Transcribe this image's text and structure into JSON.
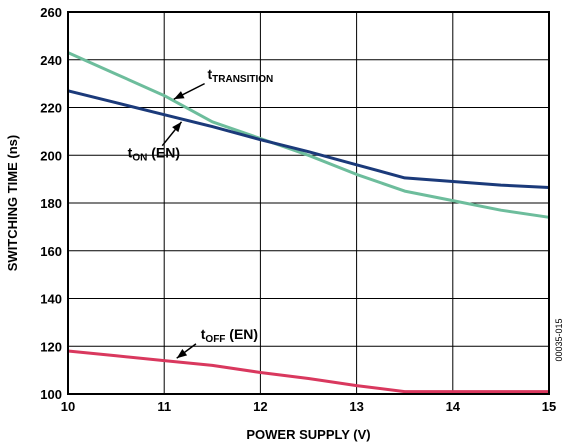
{
  "chart_data": {
    "type": "line",
    "xlabel": "POWER SUPPLY (V)",
    "ylabel": "SWITCHING TIME (ns)",
    "xlim": [
      10,
      15
    ],
    "ylim": [
      100,
      260
    ],
    "x_ticks": [
      10,
      11,
      12,
      13,
      14,
      15
    ],
    "y_ticks": [
      100,
      120,
      140,
      160,
      180,
      200,
      220,
      240,
      260
    ],
    "grid": true,
    "legend": "none",
    "series": [
      {
        "name": "tTRANSITION",
        "color": "#6dbd9c",
        "x": [
          10,
          10.5,
          11,
          11.5,
          12,
          12.5,
          13,
          13.5,
          14,
          14.5,
          15
        ],
        "y": [
          243,
          234,
          225,
          214,
          207,
          200,
          192,
          185,
          181,
          177,
          174
        ]
      },
      {
        "name": "tON (EN)",
        "color": "#1b3a7a",
        "x": [
          10,
          10.5,
          11,
          11.5,
          12,
          12.5,
          13,
          13.5,
          14,
          14.5,
          15
        ],
        "y": [
          227,
          222,
          217,
          212,
          206.5,
          201.5,
          196,
          190.5,
          189,
          187.5,
          186.5
        ]
      },
      {
        "name": "tOFF (EN)",
        "color": "#d9385e",
        "x": [
          10,
          10.5,
          11,
          11.5,
          12,
          12.5,
          13,
          13.5,
          14,
          14.5,
          15
        ],
        "y": [
          118,
          116,
          114,
          112,
          109,
          106.5,
          103.5,
          101,
          101,
          101,
          101
        ]
      }
    ],
    "annotations": [
      {
        "main": "t",
        "sub": "TRANSITION",
        "rest": "",
        "series": 0
      },
      {
        "main": "t",
        "sub": "ON",
        "rest": " (EN)",
        "series": 1
      },
      {
        "main": "t",
        "sub": "OFF",
        "rest": " (EN)",
        "series": 2
      }
    ],
    "figure_code": "00035-015"
  }
}
